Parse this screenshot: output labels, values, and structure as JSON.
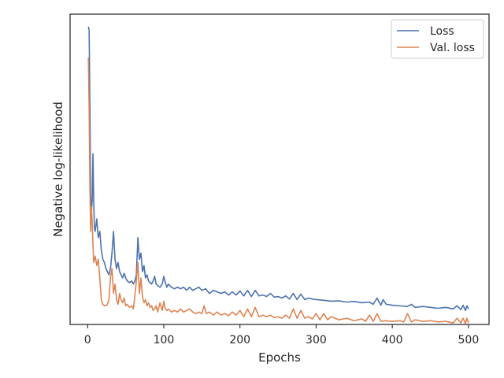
{
  "chart_data": {
    "type": "line",
    "title": "",
    "xlabel": "Epochs",
    "ylabel": "Negative log-likelihood",
    "xlim": [
      -23,
      527
    ],
    "ylim": [
      0.0,
      1.0
    ],
    "xticks": [
      0,
      100,
      200,
      300,
      400,
      500
    ],
    "yticks_visible": false,
    "grid": false,
    "legend_position": "top-right",
    "series": [
      {
        "name": "Loss",
        "color": "#4c72b0",
        "points": [
          [
            1,
            0.96
          ],
          [
            2,
            0.95
          ],
          [
            3,
            0.7
          ],
          [
            4,
            0.42
          ],
          [
            5,
            0.36
          ],
          [
            6,
            0.4
          ],
          [
            7,
            0.55
          ],
          [
            8,
            0.4
          ],
          [
            9,
            0.31
          ],
          [
            10,
            0.3
          ],
          [
            12,
            0.34
          ],
          [
            14,
            0.28
          ],
          [
            16,
            0.3
          ],
          [
            18,
            0.24
          ],
          [
            20,
            0.21
          ],
          [
            22,
            0.2
          ],
          [
            24,
            0.18
          ],
          [
            26,
            0.17
          ],
          [
            28,
            0.16
          ],
          [
            30,
            0.18
          ],
          [
            32,
            0.23
          ],
          [
            34,
            0.3
          ],
          [
            36,
            0.21
          ],
          [
            38,
            0.18
          ],
          [
            40,
            0.2
          ],
          [
            42,
            0.17
          ],
          [
            44,
            0.16
          ],
          [
            46,
            0.15
          ],
          [
            48,
            0.165
          ],
          [
            50,
            0.15
          ],
          [
            52,
            0.14
          ],
          [
            55,
            0.135
          ],
          [
            58,
            0.14
          ],
          [
            60,
            0.13
          ],
          [
            62,
            0.14
          ],
          [
            64,
            0.16
          ],
          [
            66,
            0.28
          ],
          [
            68,
            0.21
          ],
          [
            70,
            0.23
          ],
          [
            72,
            0.17
          ],
          [
            74,
            0.19
          ],
          [
            76,
            0.15
          ],
          [
            78,
            0.16
          ],
          [
            80,
            0.14
          ],
          [
            82,
            0.135
          ],
          [
            84,
            0.13
          ],
          [
            86,
            0.14
          ],
          [
            88,
            0.155
          ],
          [
            90,
            0.13
          ],
          [
            92,
            0.125
          ],
          [
            95,
            0.12
          ],
          [
            98,
            0.13
          ],
          [
            100,
            0.155
          ],
          [
            102,
            0.135
          ],
          [
            104,
            0.12
          ],
          [
            106,
            0.13
          ],
          [
            110,
            0.12
          ],
          [
            114,
            0.115
          ],
          [
            118,
            0.12
          ],
          [
            122,
            0.115
          ],
          [
            126,
            0.12
          ],
          [
            130,
            0.11
          ],
          [
            134,
            0.12
          ],
          [
            138,
            0.11
          ],
          [
            142,
            0.115
          ],
          [
            146,
            0.12
          ],
          [
            150,
            0.11
          ],
          [
            155,
            0.115
          ],
          [
            160,
            0.1
          ],
          [
            165,
            0.11
          ],
          [
            170,
            0.105
          ],
          [
            175,
            0.1
          ],
          [
            180,
            0.105
          ],
          [
            185,
            0.095
          ],
          [
            190,
            0.105
          ],
          [
            195,
            0.095
          ],
          [
            200,
            0.108
          ],
          [
            205,
            0.092
          ],
          [
            210,
            0.11
          ],
          [
            215,
            0.09
          ],
          [
            220,
            0.11
          ],
          [
            225,
            0.092
          ],
          [
            230,
            0.095
          ],
          [
            235,
            0.09
          ],
          [
            240,
            0.1
          ],
          [
            245,
            0.088
          ],
          [
            250,
            0.09
          ],
          [
            255,
            0.085
          ],
          [
            260,
            0.092
          ],
          [
            265,
            0.082
          ],
          [
            270,
            0.1
          ],
          [
            275,
            0.08
          ],
          [
            280,
            0.098
          ],
          [
            285,
            0.08
          ],
          [
            290,
            0.085
          ],
          [
            295,
            0.082
          ],
          [
            300,
            0.08
          ],
          [
            310,
            0.078
          ],
          [
            320,
            0.075
          ],
          [
            330,
            0.076
          ],
          [
            340,
            0.072
          ],
          [
            350,
            0.074
          ],
          [
            360,
            0.07
          ],
          [
            370,
            0.072
          ],
          [
            375,
            0.065
          ],
          [
            380,
            0.085
          ],
          [
            385,
            0.062
          ],
          [
            388,
            0.08
          ],
          [
            392,
            0.065
          ],
          [
            400,
            0.062
          ],
          [
            410,
            0.06
          ],
          [
            420,
            0.058
          ],
          [
            425,
            0.065
          ],
          [
            430,
            0.055
          ],
          [
            440,
            0.058
          ],
          [
            450,
            0.055
          ],
          [
            460,
            0.052
          ],
          [
            470,
            0.055
          ],
          [
            480,
            0.05
          ],
          [
            485,
            0.06
          ],
          [
            490,
            0.048
          ],
          [
            493,
            0.062
          ],
          [
            496,
            0.045
          ],
          [
            498,
            0.06
          ],
          [
            500,
            0.05
          ]
        ]
      },
      {
        "name": "Val. loss",
        "color": "#dd8452",
        "points": [
          [
            1,
            0.86
          ],
          [
            2,
            0.7
          ],
          [
            3,
            0.45
          ],
          [
            4,
            0.3
          ],
          [
            5,
            0.38
          ],
          [
            6,
            0.33
          ],
          [
            7,
            0.26
          ],
          [
            8,
            0.2
          ],
          [
            10,
            0.22
          ],
          [
            12,
            0.19
          ],
          [
            14,
            0.21
          ],
          [
            16,
            0.15
          ],
          [
            18,
            0.08
          ],
          [
            20,
            0.065
          ],
          [
            22,
            0.06
          ],
          [
            24,
            0.06
          ],
          [
            26,
            0.065
          ],
          [
            28,
            0.08
          ],
          [
            30,
            0.15
          ],
          [
            32,
            0.18
          ],
          [
            34,
            0.1
          ],
          [
            36,
            0.13
          ],
          [
            38,
            0.08
          ],
          [
            40,
            0.065
          ],
          [
            42,
            0.1
          ],
          [
            44,
            0.08
          ],
          [
            46,
            0.07
          ],
          [
            48,
            0.085
          ],
          [
            50,
            0.06
          ],
          [
            52,
            0.065
          ],
          [
            55,
            0.055
          ],
          [
            58,
            0.06
          ],
          [
            60,
            0.05
          ],
          [
            62,
            0.09
          ],
          [
            64,
            0.14
          ],
          [
            66,
            0.2
          ],
          [
            68,
            0.1
          ],
          [
            70,
            0.15
          ],
          [
            72,
            0.09
          ],
          [
            74,
            0.07
          ],
          [
            76,
            0.08
          ],
          [
            78,
            0.06
          ],
          [
            80,
            0.07
          ],
          [
            82,
            0.055
          ],
          [
            84,
            0.06
          ],
          [
            86,
            0.045
          ],
          [
            88,
            0.05
          ],
          [
            90,
            0.06
          ],
          [
            92,
            0.04
          ],
          [
            95,
            0.07
          ],
          [
            98,
            0.045
          ],
          [
            100,
            0.075
          ],
          [
            102,
            0.05
          ],
          [
            104,
            0.045
          ],
          [
            106,
            0.05
          ],
          [
            110,
            0.04
          ],
          [
            114,
            0.045
          ],
          [
            118,
            0.04
          ],
          [
            122,
            0.05
          ],
          [
            126,
            0.04
          ],
          [
            130,
            0.045
          ],
          [
            134,
            0.05
          ],
          [
            138,
            0.04
          ],
          [
            142,
            0.035
          ],
          [
            146,
            0.04
          ],
          [
            150,
            0.035
          ],
          [
            153,
            0.06
          ],
          [
            156,
            0.035
          ],
          [
            160,
            0.04
          ],
          [
            165,
            0.03
          ],
          [
            170,
            0.04
          ],
          [
            175,
            0.03
          ],
          [
            180,
            0.035
          ],
          [
            185,
            0.028
          ],
          [
            190,
            0.04
          ],
          [
            195,
            0.03
          ],
          [
            200,
            0.045
          ],
          [
            205,
            0.025
          ],
          [
            210,
            0.05
          ],
          [
            215,
            0.025
          ],
          [
            220,
            0.055
          ],
          [
            225,
            0.025
          ],
          [
            230,
            0.03
          ],
          [
            235,
            0.025
          ],
          [
            240,
            0.03
          ],
          [
            245,
            0.022
          ],
          [
            250,
            0.025
          ],
          [
            255,
            0.02
          ],
          [
            260,
            0.03
          ],
          [
            265,
            0.02
          ],
          [
            270,
            0.05
          ],
          [
            275,
            0.02
          ],
          [
            280,
            0.045
          ],
          [
            285,
            0.02
          ],
          [
            290,
            0.025
          ],
          [
            295,
            0.018
          ],
          [
            300,
            0.035
          ],
          [
            305,
            0.015
          ],
          [
            310,
            0.035
          ],
          [
            315,
            0.015
          ],
          [
            320,
            0.025
          ],
          [
            330,
            0.015
          ],
          [
            340,
            0.02
          ],
          [
            350,
            0.012
          ],
          [
            360,
            0.018
          ],
          [
            365,
            0.01
          ],
          [
            370,
            0.03
          ],
          [
            375,
            0.01
          ],
          [
            380,
            0.035
          ],
          [
            385,
            0.01
          ],
          [
            390,
            0.012
          ],
          [
            400,
            0.01
          ],
          [
            410,
            0.012
          ],
          [
            415,
            0.008
          ],
          [
            420,
            0.035
          ],
          [
            425,
            0.008
          ],
          [
            430,
            0.015
          ],
          [
            440,
            0.01
          ],
          [
            450,
            0.012
          ],
          [
            460,
            0.008
          ],
          [
            470,
            0.01
          ],
          [
            480,
            0.005
          ],
          [
            485,
            0.02
          ],
          [
            490,
            0.005
          ],
          [
            493,
            0.02
          ],
          [
            496,
            0.003
          ],
          [
            498,
            0.02
          ],
          [
            500,
            0.005
          ]
        ]
      }
    ]
  }
}
